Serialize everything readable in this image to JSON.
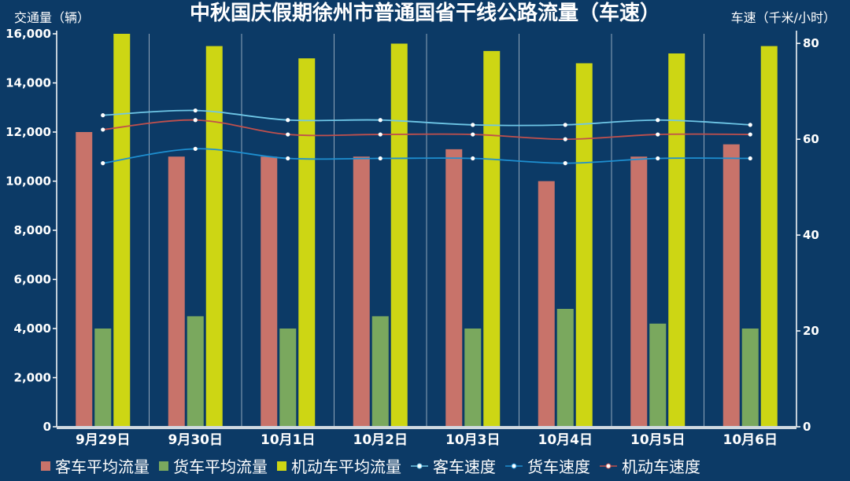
{
  "chart_data": {
    "type": "bar",
    "title": "中秋国庆假期徐州市普通国省干线公路流量（车速）",
    "ylabel_left": "交通量（辆）",
    "ylabel_right": "车速（千米/小时）",
    "y_left_range": [
      0,
      16000
    ],
    "y_left_ticks": [
      "0",
      "2,000",
      "4,000",
      "6,000",
      "8,000",
      "10,000",
      "12,000",
      "14,000",
      "16,000"
    ],
    "y_right_range": [
      0,
      82
    ],
    "y_right_ticks": [
      "0",
      "20",
      "40",
      "60",
      "80"
    ],
    "categories": [
      "9月29日",
      "9月30日",
      "10月1日",
      "10月2日",
      "10月3日",
      "10月4日",
      "10月5日",
      "10月6日"
    ],
    "bar_series": [
      {
        "name": "客车平均流量",
        "color": "#c8736a",
        "values": [
          12000,
          11000,
          11000,
          11000,
          11300,
          10000,
          11000,
          11500
        ]
      },
      {
        "name": "货车平均流量",
        "color": "#7aa85e",
        "values": [
          4000,
          4500,
          4000,
          4500,
          4000,
          4800,
          4200,
          4000
        ]
      },
      {
        "name": "机动车平均流量",
        "color": "#cdd614",
        "values": [
          16000,
          15500,
          15000,
          15600,
          15300,
          14800,
          15200,
          15500
        ]
      }
    ],
    "line_series": [
      {
        "name": "客车速度",
        "color": "#6ec6e6",
        "values": [
          65,
          66,
          64,
          64,
          63,
          63,
          64,
          63
        ]
      },
      {
        "name": "货车速度",
        "color": "#1e8fd0",
        "values": [
          55,
          58,
          56,
          56,
          56,
          55,
          56,
          56
        ]
      },
      {
        "name": "机动车速度",
        "color": "#c0504d",
        "values": [
          62,
          64,
          61,
          61,
          61,
          60,
          61,
          61
        ]
      }
    ],
    "legend_position": "bottom"
  }
}
